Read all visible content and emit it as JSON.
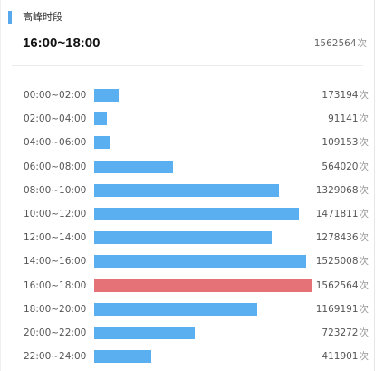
{
  "header": {
    "title": "高峰时段",
    "peak_range": "16:00~18:00",
    "peak_count": "1562564",
    "unit": "次"
  },
  "colors": {
    "accent": "#58a8ee",
    "bar": "#5aaff0",
    "peak_bar": "#e57277"
  },
  "chart_data": {
    "type": "bar",
    "orientation": "horizontal",
    "categories": [
      "00:00~02:00",
      "02:00~04:00",
      "04:00~06:00",
      "06:00~08:00",
      "08:00~10:00",
      "10:00~12:00",
      "12:00~14:00",
      "14:00~16:00",
      "16:00~18:00",
      "18:00~20:00",
      "20:00~22:00",
      "22:00~24:00"
    ],
    "values": [
      173194,
      91141,
      109153,
      564020,
      1329068,
      1471811,
      1278436,
      1525008,
      1562564,
      1169191,
      723272,
      411901
    ],
    "highlight_index": 8,
    "value_unit": "次"
  }
}
